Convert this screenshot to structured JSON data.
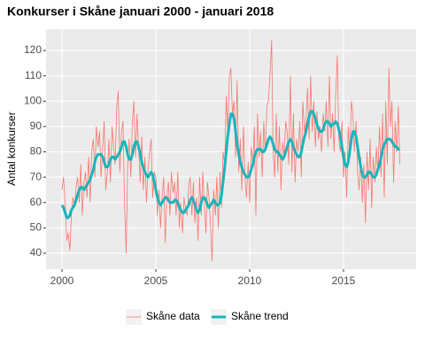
{
  "chart_data": {
    "type": "line",
    "title": "Konkurser i Skåne januari 2000 - januari 2018",
    "y_label": "Antal konkurser",
    "x": [
      2000,
      2000.08,
      2000.17,
      2000.25,
      2000.33,
      2000.42,
      2000.5,
      2000.58,
      2000.67,
      2000.75,
      2000.83,
      2000.92,
      2001,
      2001.08,
      2001.17,
      2001.25,
      2001.33,
      2001.42,
      2001.5,
      2001.58,
      2001.67,
      2001.75,
      2001.83,
      2001.92,
      2002,
      2002.08,
      2002.17,
      2002.25,
      2002.33,
      2002.42,
      2002.5,
      2002.58,
      2002.67,
      2002.75,
      2002.83,
      2002.92,
      2003,
      2003.08,
      2003.17,
      2003.25,
      2003.33,
      2003.42,
      2003.5,
      2003.58,
      2003.67,
      2003.75,
      2003.83,
      2003.92,
      2004,
      2004.08,
      2004.17,
      2004.25,
      2004.33,
      2004.42,
      2004.5,
      2004.58,
      2004.67,
      2004.75,
      2004.83,
      2004.92,
      2005,
      2005.08,
      2005.17,
      2005.25,
      2005.33,
      2005.42,
      2005.5,
      2005.58,
      2005.67,
      2005.75,
      2005.83,
      2005.92,
      2006,
      2006.08,
      2006.17,
      2006.25,
      2006.33,
      2006.42,
      2006.5,
      2006.58,
      2006.67,
      2006.75,
      2006.83,
      2006.92,
      2007,
      2007.08,
      2007.17,
      2007.25,
      2007.33,
      2007.42,
      2007.5,
      2007.58,
      2007.67,
      2007.75,
      2007.83,
      2007.92,
      2008,
      2008.08,
      2008.17,
      2008.25,
      2008.33,
      2008.42,
      2008.5,
      2008.58,
      2008.67,
      2008.75,
      2008.83,
      2008.92,
      2009,
      2009.08,
      2009.17,
      2009.25,
      2009.33,
      2009.42,
      2009.5,
      2009.58,
      2009.67,
      2009.75,
      2009.83,
      2009.92,
      2010,
      2010.08,
      2010.17,
      2010.25,
      2010.33,
      2010.42,
      2010.5,
      2010.58,
      2010.67,
      2010.75,
      2010.83,
      2010.92,
      2011,
      2011.08,
      2011.17,
      2011.25,
      2011.33,
      2011.42,
      2011.5,
      2011.58,
      2011.67,
      2011.75,
      2011.83,
      2011.92,
      2012,
      2012.08,
      2012.17,
      2012.25,
      2012.33,
      2012.42,
      2012.5,
      2012.58,
      2012.67,
      2012.75,
      2012.83,
      2012.92,
      2013,
      2013.08,
      2013.17,
      2013.25,
      2013.33,
      2013.42,
      2013.5,
      2013.58,
      2013.67,
      2013.75,
      2013.83,
      2013.92,
      2014,
      2014.08,
      2014.17,
      2014.25,
      2014.33,
      2014.42,
      2014.5,
      2014.58,
      2014.67,
      2014.75,
      2014.83,
      2014.92,
      2015,
      2015.08,
      2015.17,
      2015.25,
      2015.33,
      2015.42,
      2015.5,
      2015.58,
      2015.67,
      2015.75,
      2015.83,
      2015.92,
      2016,
      2016.08,
      2016.17,
      2016.25,
      2016.33,
      2016.42,
      2016.5,
      2016.58,
      2016.67,
      2016.75,
      2016.83,
      2016.92,
      2017,
      2017.08,
      2017.17,
      2017.25,
      2017.33,
      2017.42,
      2017.5,
      2017.58,
      2017.67,
      2017.75,
      2017.83,
      2017.92,
      2018
    ],
    "series": [
      {
        "name": "Skåne data",
        "color": "#f8766d",
        "width": 0.8,
        "values": [
          65,
          70,
          60,
          45,
          48,
          41,
          55,
          62,
          58,
          66,
          70,
          60,
          75,
          55,
          68,
          72,
          62,
          78,
          60,
          80,
          85,
          70,
          90,
          82,
          88,
          70,
          82,
          92,
          65,
          72,
          85,
          68,
          90,
          82,
          75,
          98,
          104,
          72,
          88,
          92,
          60,
          40,
          75,
          85,
          70,
          92,
          100,
          78,
          95,
          82,
          68,
          86,
          65,
          78,
          60,
          72,
          80,
          85,
          62,
          72,
          70,
          55,
          65,
          50,
          62,
          70,
          44,
          62,
          68,
          55,
          72,
          64,
          68,
          55,
          72,
          50,
          60,
          48,
          62,
          58,
          55,
          66,
          70,
          55,
          68,
          52,
          62,
          45,
          70,
          55,
          72,
          60,
          48,
          68,
          62,
          50,
          37,
          65,
          55,
          70,
          50,
          72,
          58,
          80,
          75,
          102,
          88,
          110,
          113,
          95,
          100,
          78,
          108,
          72,
          85,
          65,
          90,
          70,
          62,
          76,
          60,
          82,
          75,
          90,
          55,
          95,
          78,
          88,
          70,
          92,
          80,
          98,
          100,
          110,
          124,
          80,
          70,
          95,
          72,
          90,
          65,
          84,
          78,
          92,
          88,
          75,
          110,
          72,
          95,
          68,
          85,
          80,
          92,
          70,
          100,
          88,
          92,
          105,
          85,
          110,
          88,
          100,
          82,
          96,
          85,
          90,
          80,
          95,
          88,
          100,
          82,
          110,
          85,
          95,
          80,
          102,
          118,
          85,
          80,
          92,
          70,
          80,
          62,
          90,
          78,
          100,
          95,
          80,
          92,
          72,
          65,
          78,
          60,
          75,
          52,
          80,
          65,
          85,
          58,
          78,
          68,
          82,
          72,
          90,
          70,
          95,
          62,
          100,
          75,
          113,
          90,
          100,
          68,
          92,
          80,
          98,
          75
        ]
      },
      {
        "name": "Skåne trend",
        "color": "#19b5bb",
        "width": 3,
        "values": [
          59,
          58,
          56,
          54,
          54,
          55,
          57,
          58,
          59,
          61,
          63,
          65,
          66,
          66,
          65,
          66,
          67,
          68,
          69,
          71,
          73,
          76,
          78,
          79,
          79,
          79,
          78,
          76,
          74,
          74,
          75,
          77,
          78,
          78,
          77,
          78,
          79,
          80,
          82,
          84,
          84,
          82,
          79,
          77,
          77,
          79,
          82,
          84,
          84,
          82,
          79,
          76,
          74,
          72,
          71,
          70,
          71,
          72,
          71,
          68,
          65,
          62,
          60,
          59,
          60,
          61,
          62,
          62,
          61,
          60,
          60,
          60,
          61,
          61,
          60,
          58,
          57,
          56,
          56,
          57,
          58,
          59,
          61,
          62,
          61,
          59,
          57,
          56,
          57,
          60,
          62,
          62,
          61,
          59,
          58,
          59,
          60,
          61,
          60,
          59,
          59,
          60,
          63,
          68,
          74,
          80,
          86,
          91,
          95,
          95,
          93,
          88,
          83,
          79,
          76,
          74,
          72,
          71,
          70,
          70,
          71,
          73,
          75,
          78,
          80,
          81,
          81,
          81,
          80,
          80,
          81,
          83,
          85,
          86,
          85,
          83,
          81,
          80,
          80,
          79,
          78,
          77,
          78,
          80,
          82,
          84,
          85,
          84,
          82,
          80,
          79,
          78,
          78,
          80,
          83,
          86,
          88,
          91,
          94,
          96,
          96,
          95,
          93,
          91,
          89,
          88,
          88,
          89,
          91,
          92,
          92,
          91,
          90,
          91,
          91,
          92,
          91,
          89,
          86,
          82,
          78,
          75,
          74,
          76,
          80,
          85,
          88,
          88,
          86,
          82,
          78,
          74,
          71,
          70,
          70,
          71,
          72,
          72,
          71,
          70,
          70,
          71,
          73,
          75,
          78,
          81,
          83,
          84,
          85,
          85,
          85,
          84,
          83,
          82,
          82,
          81,
          81
        ]
      }
    ],
    "xlim": [
      1999.15,
      2018.87
    ],
    "xticks": [
      2000,
      2005,
      2010,
      2015
    ],
    "ylim": [
      33.7,
      128.4
    ],
    "yticks": [
      40,
      50,
      60,
      70,
      80,
      90,
      100,
      110,
      120
    ],
    "grid": true,
    "legend": "bottom"
  }
}
